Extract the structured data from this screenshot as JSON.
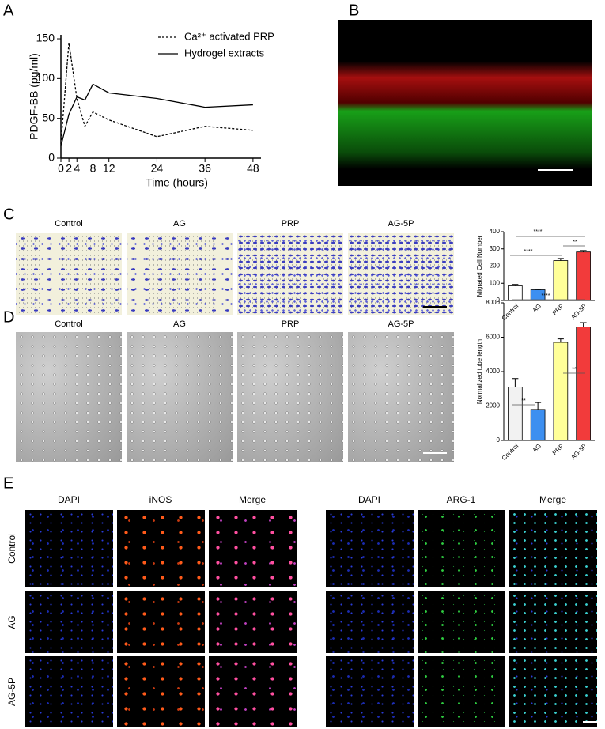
{
  "panels": [
    "A",
    "B",
    "C",
    "D",
    "E"
  ],
  "images": {
    "c_labels": [
      "Control",
      "AG",
      "PRP",
      "AG-5P"
    ],
    "d_labels": [
      "Control",
      "AG",
      "PRP",
      "AG-5P"
    ],
    "e_left_headers": [
      "DAPI",
      "iNOS",
      "Merge"
    ],
    "e_right_headers": [
      "DAPI",
      "ARG-1",
      "Merge"
    ],
    "e_rows": [
      "Control",
      "AG",
      "AG-5P"
    ]
  },
  "chart_data": [
    {
      "type": "line",
      "xlabel": "Time (hours)",
      "ylabel": "PDGF-BB (pg/ml)",
      "x": [
        0,
        2,
        4,
        6,
        8,
        12,
        24,
        36,
        48
      ],
      "series": [
        {
          "name": "Ca²⁺ activated PRP",
          "color": "#000000",
          "style": "dashed",
          "values": [
            18,
            145,
            75,
            40,
            58,
            48,
            27,
            40,
            35
          ]
        },
        {
          "name": "Hydrogel extracts",
          "color": "#000000",
          "style": "solid",
          "values": [
            15,
            55,
            77,
            73,
            93,
            82,
            75,
            64,
            67
          ]
        }
      ],
      "xlim": [
        0,
        50
      ],
      "ylim": [
        0,
        155
      ],
      "xticks": [
        0,
        2,
        4,
        8,
        12,
        24,
        36,
        48
      ],
      "yticks": [
        0,
        50,
        100,
        150
      ],
      "legend": "upper right"
    },
    {
      "type": "bar",
      "ylabel": "Migrated Cell Number",
      "categories": [
        "Control",
        "AG",
        "PRP",
        "AG-5P"
      ],
      "values": [
        85,
        62,
        232,
        282
      ],
      "errors": [
        8,
        3,
        12,
        8
      ],
      "colors": [
        "#ffffff",
        "#3d8ff0",
        "#ffff99",
        "#f23b3b"
      ],
      "ylim": [
        0,
        400
      ],
      "yticks": [
        0,
        100,
        200,
        300,
        400
      ],
      "annotations": [
        "****",
        "****",
        "**"
      ]
    },
    {
      "type": "bar",
      "ylabel": "Normalized tube length",
      "categories": [
        "Control",
        "AG",
        "PRP",
        "AG-5P"
      ],
      "values": [
        3100,
        1800,
        5700,
        6600
      ],
      "errors": [
        500,
        400,
        200,
        250
      ],
      "colors": [
        "#f2f2f2",
        "#3d8ff0",
        "#ffff99",
        "#f23b3b"
      ],
      "ylim": [
        0,
        8000
      ],
      "yticks": [
        0,
        2000,
        4000,
        6000,
        8000
      ],
      "annotations": [
        "**",
        "****",
        "**"
      ]
    }
  ]
}
